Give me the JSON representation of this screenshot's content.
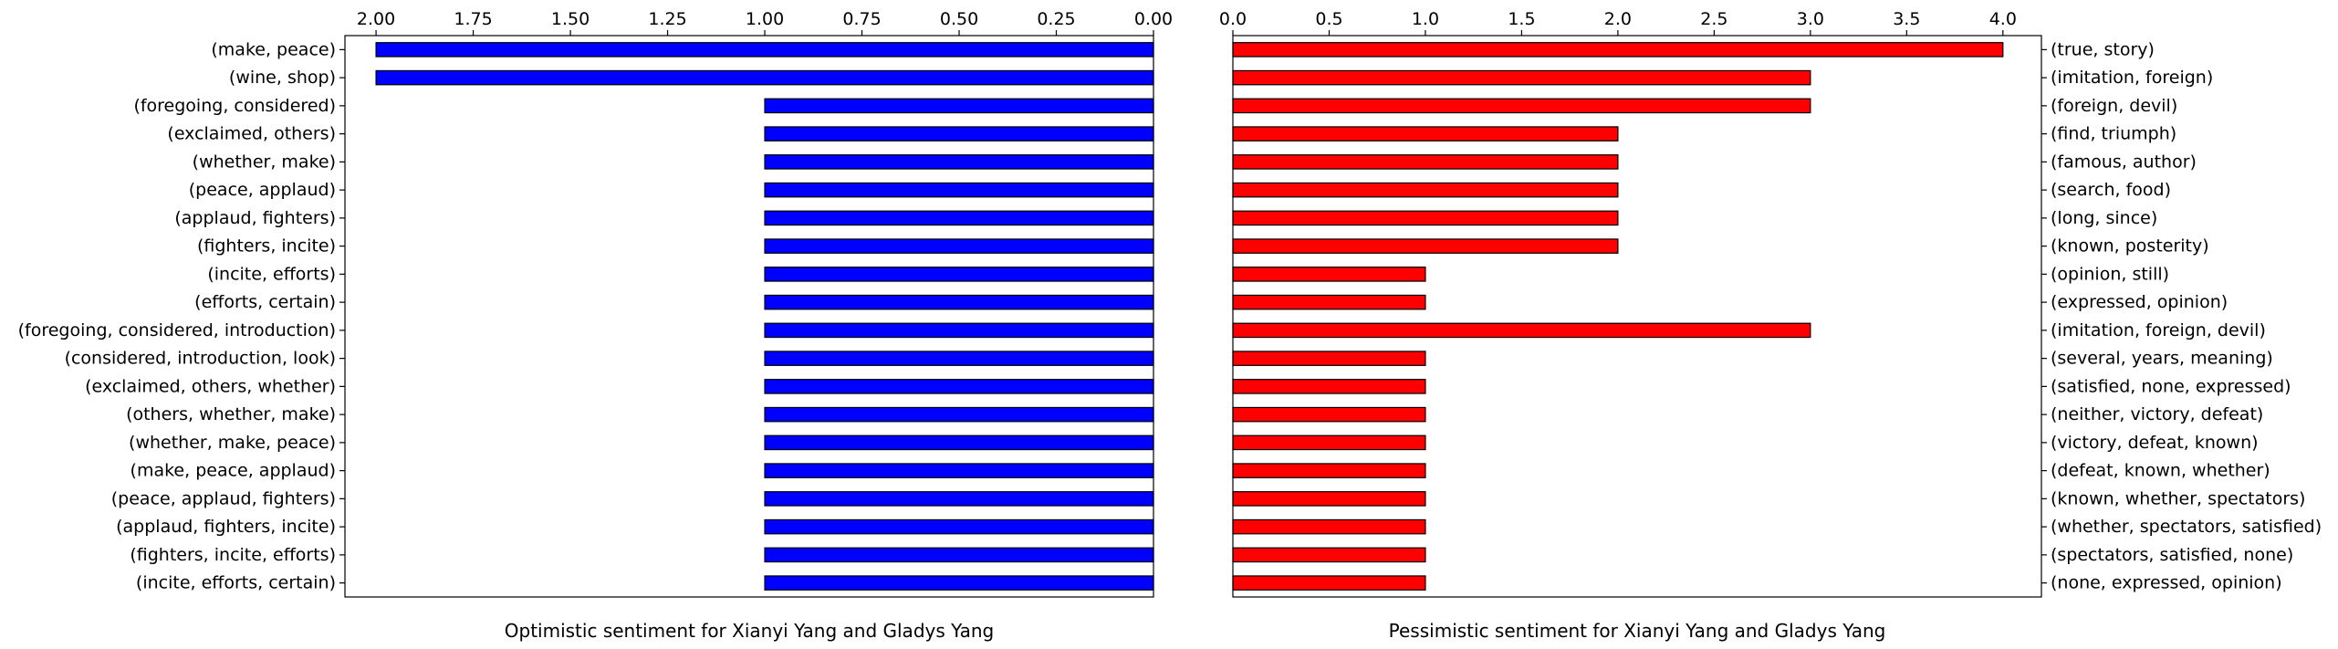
{
  "chart_data": [
    {
      "type": "bar",
      "orientation": "horizontal",
      "x_axis": "inverted",
      "tick_position": "top",
      "category_axis": "left",
      "title": "",
      "xlabel": "Optimistic sentiment for Xianyi Yang and Gladys Yang",
      "ylabel": "",
      "xlim": [
        0,
        2.08
      ],
      "xticks": [
        "0.00",
        "0.25",
        "0.50",
        "0.75",
        "1.00",
        "1.25",
        "1.50",
        "1.75",
        "2.00"
      ],
      "color": "#0000ff",
      "grid": false,
      "categories": [
        "(make, peace)",
        "(wine, shop)",
        "(foregoing, considered)",
        "(exclaimed, others)",
        "(whether, make)",
        "(peace, applaud)",
        "(applaud, fighters)",
        "(fighters, incite)",
        "(incite, efforts)",
        "(efforts, certain)",
        "(foregoing, considered, introduction)",
        "(considered, introduction, look)",
        "(exclaimed, others, whether)",
        "(others, whether, make)",
        "(whether, make, peace)",
        "(make, peace, applaud)",
        "(peace, applaud, fighters)",
        "(applaud, fighters, incite)",
        "(fighters, incite, efforts)",
        "(incite, efforts, certain)"
      ],
      "values": [
        2,
        2,
        1,
        1,
        1,
        1,
        1,
        1,
        1,
        1,
        1,
        1,
        1,
        1,
        1,
        1,
        1,
        1,
        1,
        1
      ]
    },
    {
      "type": "bar",
      "orientation": "horizontal",
      "tick_position": "top",
      "category_axis": "right",
      "title": "",
      "xlabel": "Pessimistic sentiment for Xianyi Yang and Gladys Yang",
      "ylabel": "",
      "xlim": [
        0,
        4.2
      ],
      "xticks": [
        "0.0",
        "0.5",
        "1.0",
        "1.5",
        "2.0",
        "2.5",
        "3.0",
        "3.5",
        "4.0"
      ],
      "color": "#ff0000",
      "grid": false,
      "categories": [
        "(true, story)",
        "(imitation, foreign)",
        "(foreign, devil)",
        "(find, triumph)",
        "(famous, author)",
        "(search, food)",
        "(long, since)",
        "(known, posterity)",
        "(opinion, still)",
        "(expressed, opinion)",
        "(imitation, foreign, devil)",
        "(several, years, meaning)",
        "(satisfied, none, expressed)",
        "(neither, victory, defeat)",
        "(victory, defeat, known)",
        "(defeat, known, whether)",
        "(known, whether, spectators)",
        "(whether, spectators, satisfied)",
        "(spectators, satisfied, none)",
        "(none, expressed, opinion)"
      ],
      "values": [
        4,
        3,
        3,
        2,
        2,
        2,
        2,
        2,
        1,
        1,
        3,
        1,
        1,
        1,
        1,
        1,
        1,
        1,
        1,
        1
      ]
    }
  ]
}
